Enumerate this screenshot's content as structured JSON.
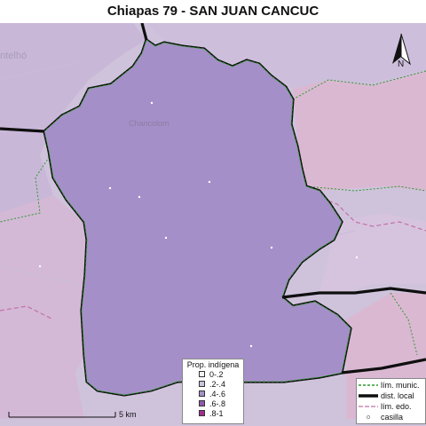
{
  "title": "Chiapas 79 - SAN JUAN CANCUC",
  "place_labels": {
    "chancolom": "Chancolom",
    "cut_left": "antelhó"
  },
  "north_label": "N",
  "scale_label": "5 km",
  "prop_legend": {
    "title": "Prop. indígena",
    "items": [
      {
        "label": "0-.2",
        "color": "#f7f2f7"
      },
      {
        "label": ".2-.4",
        "color": "#c9c4df"
      },
      {
        "label": ".4-.6",
        "color": "#a590c7"
      },
      {
        "label": ".6-.8",
        "color": "#8e5aab"
      },
      {
        "label": ".8-1",
        "color": "#a02e8d"
      }
    ]
  },
  "line_legend": {
    "items": [
      {
        "label": "lím. munic.",
        "kind": "municipal"
      },
      {
        "label": "dist. local",
        "kind": "district"
      },
      {
        "label": "lím. edo.",
        "kind": "state"
      },
      {
        "label": "casilla",
        "kind": "casilla"
      }
    ]
  },
  "colors": {
    "main_area": "#a58fc8",
    "south_area": "#a85fab",
    "neighbors_west": "#d3b9d6",
    "neighbors_east": "#dab8d2",
    "neighbors_north": "#cfc3dc",
    "municipal_line": "#2e9a2e",
    "district_line": "#0f0f0f",
    "state_line": "#c46fa8"
  }
}
